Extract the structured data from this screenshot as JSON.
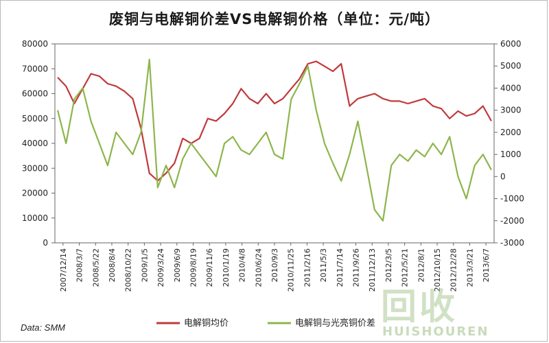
{
  "title": "废铜与电解铜价差VS电解铜价格（单位：元/吨）",
  "source": "Data: SMM",
  "watermark": {
    "text": "回收",
    "subtext": "HUISHOUREN"
  },
  "colors": {
    "red_series": "#c0393b",
    "green_series": "#8db54b",
    "axis": "#666666"
  },
  "chart_data": {
    "type": "line",
    "title": "废铜与电解铜价差VS电解铜价格（单位：元/吨）",
    "x_tick_labels": [
      "2007/12/14",
      "2008/3/7",
      "2008/5/22",
      "2008/8/4",
      "2008/10/22",
      "2009/1/5",
      "2009/3/24",
      "2009/6/9",
      "2009/8/19",
      "2009/11/6",
      "2010/1/19",
      "2010/4/8",
      "2010/6/24",
      "2010/9/3",
      "2010/11/25",
      "2011/2/16",
      "2011/5/3",
      "2011/7/14",
      "2011/9/26",
      "2011/12/13",
      "2012/3/5",
      "2012/5/21",
      "2012/8/1",
      "2012/10/15",
      "2012/12/28",
      "2013/3/21",
      "2013/6/7"
    ],
    "y_left": {
      "min": 0,
      "max": 80000,
      "ticks": [
        "0",
        "10000",
        "20000",
        "30000",
        "40000",
        "50000",
        "60000",
        "70000",
        "80000"
      ]
    },
    "y_right": {
      "min": -3000,
      "max": 6000,
      "ticks": [
        "-3000",
        "-2000",
        "-1000",
        "0",
        "1000",
        "2000",
        "3000",
        "4000",
        "5000",
        "6000"
      ]
    },
    "legend": {
      "position": "bottom"
    },
    "series": [
      {
        "name": "电解铜均价",
        "axis": "left",
        "color": "#c0393b",
        "values": [
          66500,
          63000,
          56000,
          62000,
          68000,
          67000,
          64000,
          63000,
          61000,
          58000,
          46000,
          28000,
          25000,
          28000,
          32000,
          42000,
          40000,
          42000,
          50000,
          49000,
          52000,
          56000,
          62000,
          58000,
          56000,
          60000,
          56000,
          58000,
          62000,
          66000,
          72000,
          73000,
          71000,
          69000,
          72000,
          55000,
          58000,
          59000,
          60000,
          58000,
          57000,
          57000,
          56000,
          57000,
          58000,
          55000,
          54000,
          50000,
          53000,
          51000,
          52000,
          55000,
          49000
        ]
      },
      {
        "name": "电解铜与光亮铜价差",
        "axis": "right",
        "color": "#8db54b",
        "values": [
          3000,
          1500,
          3500,
          4000,
          2500,
          1500,
          500,
          2000,
          1500,
          1000,
          2000,
          5300,
          -500,
          500,
          -500,
          800,
          1500,
          1000,
          500,
          0,
          1500,
          1800,
          1200,
          1000,
          1500,
          2000,
          1000,
          800,
          3500,
          4200,
          5000,
          3000,
          1500,
          600,
          -200,
          1000,
          2500,
          500,
          -1500,
          -2000,
          500,
          1000,
          700,
          1200,
          900,
          1500,
          1000,
          1800,
          0,
          -1000,
          500,
          1000,
          300
        ]
      }
    ]
  }
}
